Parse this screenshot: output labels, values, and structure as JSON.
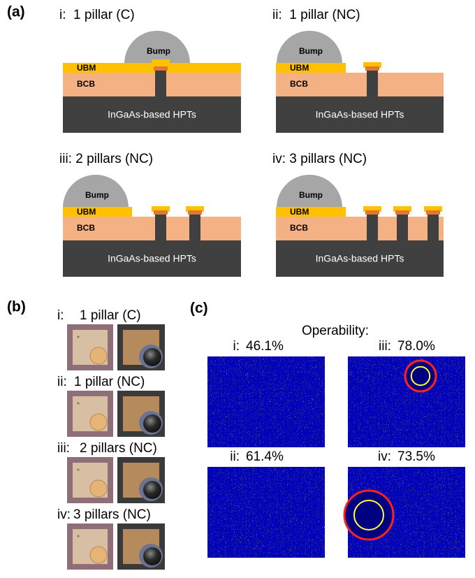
{
  "panel_a": {
    "label": "(a)",
    "diagrams": [
      {
        "title": "i:  1 pillar (C)",
        "bump": "Bump",
        "ubm": "UBM",
        "bcb": "BCB",
        "substrate": "InGaAs-based HPTs"
      },
      {
        "title": "ii:  1 pillar (NC)",
        "bump": "Bump",
        "ubm": "UBM",
        "bcb": "BCB",
        "substrate": "InGaAs-based HPTs"
      },
      {
        "title": "iii: 2 pillars (NC)",
        "bump": "Bump",
        "ubm": "UBM",
        "bcb": "BCB",
        "substrate": "InGaAs-based HPTs"
      },
      {
        "title": "iv: 3 pillars (NC)",
        "bump": "Bump",
        "ubm": "UBM",
        "bcb": "BCB",
        "substrate": "InGaAs-based HPTs"
      }
    ]
  },
  "panel_b": {
    "label": "(b)",
    "rows": [
      {
        "roman": "i:",
        "text": "1 pillar (C)"
      },
      {
        "roman": "ii:",
        "text": "1 pillar (NC)"
      },
      {
        "roman": "iii:",
        "text": "2 pillars (NC)"
      },
      {
        "roman": "iv:",
        "text": "3 pillars (NC)"
      }
    ]
  },
  "panel_c": {
    "label": "(c)",
    "heading": "Operability:",
    "maps": [
      {
        "label": "i:",
        "value": "46.1%"
      },
      {
        "label": "iii:",
        "value": "78.0%"
      },
      {
        "label": "ii:",
        "value": "61.4%"
      },
      {
        "label": "iv:",
        "value": "73.5%"
      }
    ]
  }
}
